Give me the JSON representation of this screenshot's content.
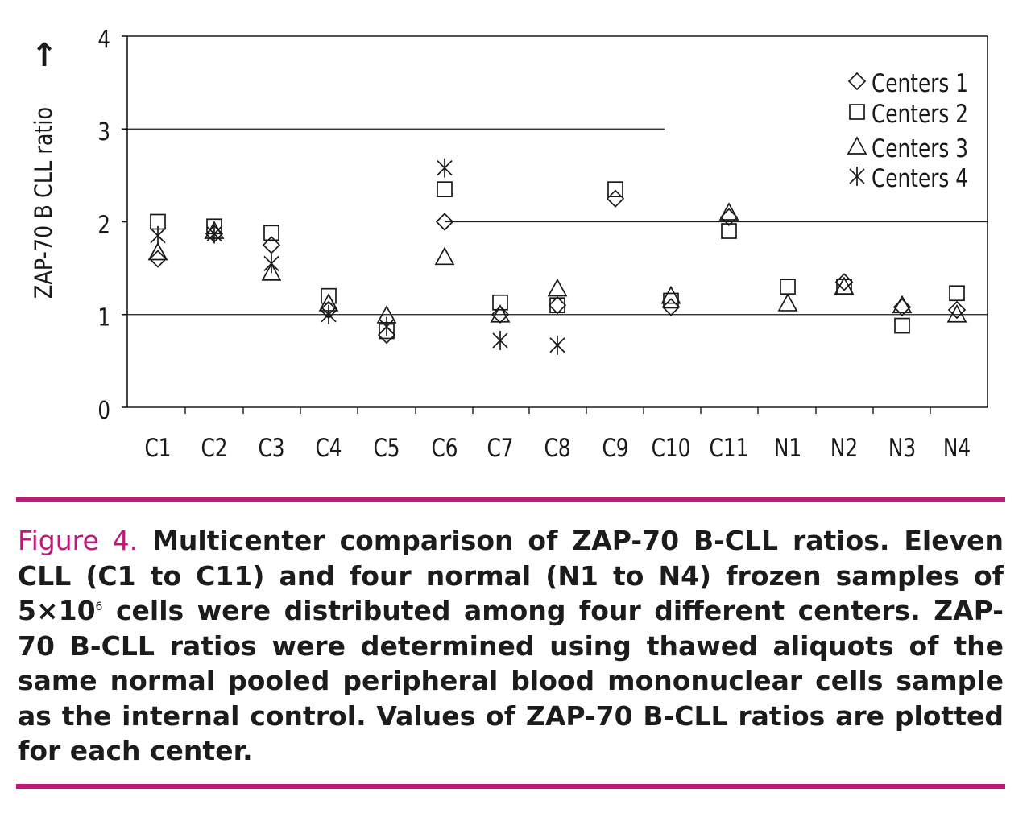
{
  "theme": {
    "accent": "#c2177a",
    "ink": "#1a1a1a"
  },
  "chart_data": {
    "type": "scatter",
    "title": "",
    "ylabel": "ZAP-70 B CLL ratio",
    "ylabel_arrow": "↑",
    "xlabel": "",
    "ylim": [
      0,
      4
    ],
    "yticks": [
      "0",
      "1",
      "2",
      "3",
      "4"
    ],
    "grid": false,
    "legend_position": "top-right",
    "categories": [
      "C1",
      "C2",
      "C3",
      "C4",
      "C5",
      "C6",
      "C7",
      "C8",
      "C9",
      "C10",
      "C11",
      "N1",
      "N2",
      "N3",
      "N4"
    ],
    "series": [
      {
        "name": "Centers 1",
        "marker": "diamond",
        "values": [
          1.6,
          1.87,
          1.75,
          1.05,
          0.78,
          2.0,
          1.0,
          1.1,
          2.25,
          1.08,
          2.05,
          null,
          1.35,
          1.08,
          1.05
        ]
      },
      {
        "name": "Centers 2",
        "marker": "square",
        "values": [
          2.0,
          1.95,
          1.88,
          1.2,
          0.82,
          2.35,
          1.13,
          1.1,
          2.35,
          1.15,
          1.9,
          1.3,
          1.3,
          0.88,
          1.23
        ]
      },
      {
        "name": "Centers 3",
        "marker": "triangle",
        "values": [
          1.67,
          1.9,
          1.45,
          1.12,
          0.99,
          1.62,
          1.0,
          1.28,
          null,
          1.2,
          2.1,
          1.12,
          1.3,
          1.1,
          1.0
        ]
      },
      {
        "name": "Centers 4",
        "marker": "asterisk",
        "values": [
          1.85,
          1.87,
          1.55,
          1.0,
          0.87,
          2.58,
          0.72,
          0.67,
          null,
          null,
          null,
          null,
          null,
          null,
          null
        ]
      }
    ],
    "reference_lines": [
      {
        "y": 3,
        "from_category": "C1",
        "to_category": "C10"
      },
      {
        "y": 2,
        "from_category": "C6",
        "to_category": "N4"
      },
      {
        "y": 1,
        "from_category": "C1",
        "to_category": "N4"
      }
    ]
  },
  "caption": {
    "label": "Figure 4.",
    "text_before_exp": "Multicenter comparison of ZAP-70 B-CLL ratios. Eleven CLL (C1 to C11) and four normal (N1 to N4) frozen samples of 5×10",
    "exponent": "6",
    "text_after_exp": " cells were distributed among four different centers. ZAP-70 B-CLL ratios were determined using thawed aliquots of the same normal pooled peripheral blood mononuclear cells sample as the internal control. Values of ZAP-70 B-CLL ratios are plotted for each center."
  }
}
